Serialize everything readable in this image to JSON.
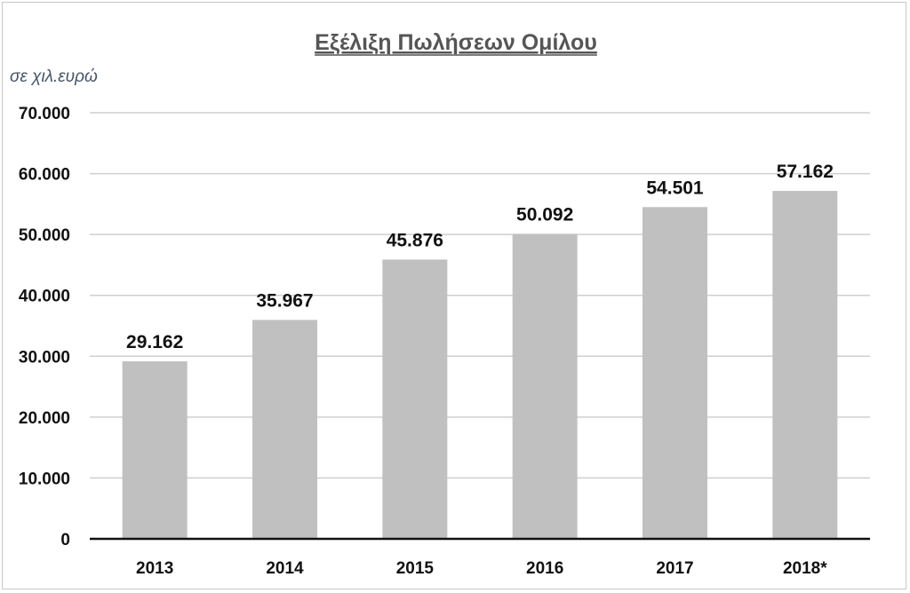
{
  "chart_data": {
    "type": "bar",
    "title": "Εξέλιξη Πωλήσεων Ομίλου",
    "unit_label": "σε χιλ.ευρώ",
    "categories": [
      "2013",
      "2014",
      "2015",
      "2016",
      "2017",
      "2018*"
    ],
    "values": [
      29162,
      35967,
      45876,
      50092,
      54501,
      57162
    ],
    "data_labels": [
      "29.162",
      "35.967",
      "45.876",
      "50.092",
      "54.501",
      "57.162"
    ],
    "y_ticks": [
      0,
      10000,
      20000,
      30000,
      40000,
      50000,
      60000,
      70000
    ],
    "y_tick_labels": [
      "0",
      "10.000",
      "20.000",
      "30.000",
      "40.000",
      "50.000",
      "60.000",
      "70.000"
    ],
    "ylim": [
      0,
      70000
    ],
    "grid": true,
    "legend": "none",
    "colors": {
      "bar": "#c0c0c0",
      "grid": "#cfcfcf",
      "axis": "#111111"
    }
  }
}
